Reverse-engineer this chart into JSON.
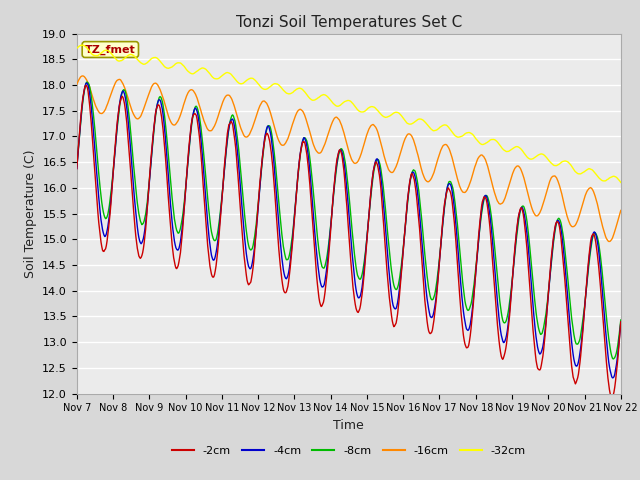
{
  "title": "Tonzi Soil Temperatures Set C",
  "xlabel": "Time",
  "ylabel": "Soil Temperature (C)",
  "ylim": [
    12.0,
    19.0
  ],
  "yticks": [
    12.0,
    12.5,
    13.0,
    13.5,
    14.0,
    14.5,
    15.0,
    15.5,
    16.0,
    16.5,
    17.0,
    17.5,
    18.0,
    18.5,
    19.0
  ],
  "colors": {
    "-2cm": "#cc0000",
    "-4cm": "#0000cc",
    "-8cm": "#00bb00",
    "-16cm": "#ff8800",
    "-32cm": "#ffff00"
  },
  "xtick_labels": [
    "Nov 7",
    "Nov 8",
    "Nov 9",
    "Nov 10",
    "Nov 11",
    "Nov 12",
    "Nov 13",
    "Nov 14",
    "Nov 15",
    "Nov 16",
    "Nov 17",
    "Nov 18",
    "Nov 19",
    "Nov 20",
    "Nov 21",
    "Nov 22"
  ],
  "annotation_text": "TZ_fmet",
  "annotation_color": "#aa0000",
  "annotation_bg": "#ffffcc",
  "fig_bg": "#d8d8d8",
  "plot_bg": "#ebebeb",
  "grid_color": "#ffffff",
  "n_points": 720
}
